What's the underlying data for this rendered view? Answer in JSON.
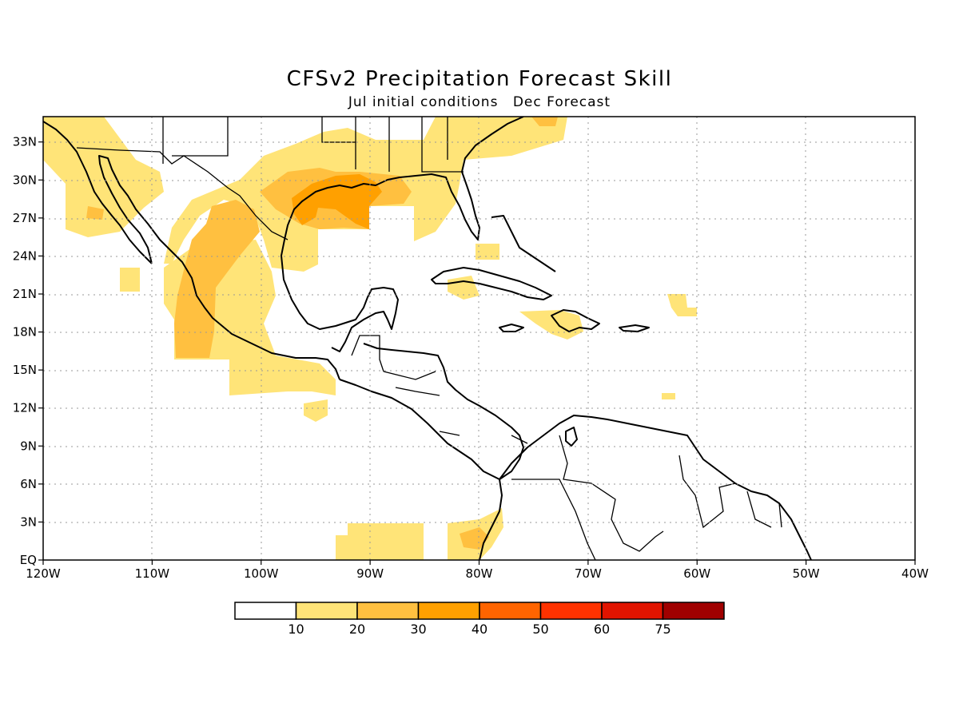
{
  "title": "CFSv2 Precipitation Forecast Skill",
  "subtitle_left": "Jul initial conditions",
  "subtitle_right": "Dec Forecast",
  "map": {
    "lon_range": [
      -120,
      -40
    ],
    "lat_range": [
      0,
      35
    ],
    "lon_labels": [
      "120W",
      "110W",
      "100W",
      "90W",
      "80W",
      "70W",
      "60W",
      "50W",
      "40W"
    ],
    "lat_labels": [
      "EQ",
      "3N",
      "6N",
      "9N",
      "12N",
      "15N",
      "18N",
      "21N",
      "24N",
      "27N",
      "30N",
      "33N"
    ],
    "grid": "dotted"
  },
  "colorbar": {
    "labels": [
      "10",
      "20",
      "30",
      "40",
      "50",
      "60",
      "75"
    ],
    "colors": [
      "#ffffff",
      "#ffe478",
      "#ffc040",
      "#ffa000",
      "#ff6400",
      "#ff3200",
      "#e11400",
      "#a00000"
    ]
  }
}
